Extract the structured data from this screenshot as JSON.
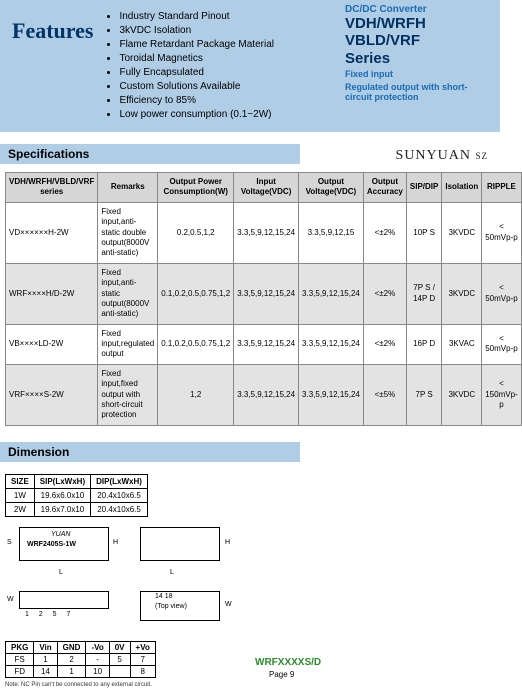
{
  "features": {
    "title": "Features",
    "items": [
      "Industry Standard Pinout",
      "3kVDC Isolation",
      "Flame Retardant Package Material",
      "Toroidal Magnetics",
      "Fully Encapsulated",
      "Custom Solutions Available",
      "Efficiency to 85%",
      "Low power consumption (0.1~2W)"
    ]
  },
  "right_title": {
    "line1": "DC/DC Converter",
    "line2": "VDH/WRFH",
    "line3": "VBLD/VRF",
    "line4": "Series",
    "sub1": "Fixed input",
    "sub2": "Regulated output with short-circuit protection"
  },
  "brand": {
    "name": "SUNYUAN",
    "suffix": "SZ"
  },
  "sections": {
    "spec": "Specifications",
    "dim": "Dimension"
  },
  "spec_table": {
    "headers": [
      "VDH/WRFH/VBLD/VRF series",
      "Remarks",
      "Output Power Consumption(W)",
      "Input Voltage(VDC)",
      "Output Voltage(VDC)",
      "Output Accuracy",
      "SIP/DIP",
      "Isolation",
      "RIPPLE"
    ],
    "rows": [
      {
        "series": "VD××××××H-2W",
        "remark": "Fixed input,anti-static double output(8000V anti-static)",
        "power": "0.2,0.5,1,2",
        "vin": "3.3,5,9,12,15,24",
        "vout": "3.3,5,9,12,15",
        "acc": "<±2%",
        "pkg": "10P S",
        "iso": "3KVDC",
        "rip": "< 50mVp-p"
      },
      {
        "series": "WRF××××H/D-2W",
        "remark": "Fixed input,anti-static output(8000V anti-static)",
        "power": "0.1,0.2,0.5,0.75,1,2",
        "vin": "3.3,5,9,12,15,24",
        "vout": "3.3,5,9,12,15,24",
        "acc": "<±2%",
        "pkg": "7P S / 14P D",
        "iso": "3KVDC",
        "rip": "< 50mVp-p"
      },
      {
        "series": "VB××××LD-2W",
        "remark": "Fixed input,regulated output",
        "power": "0.1,0.2,0.5,0.75,1,2",
        "vin": "3.3,5,9,12,15,24",
        "vout": "3.3,5,9,12,15,24",
        "acc": "<±2%",
        "pkg": "16P D",
        "iso": "3KVAC",
        "rip": "< 50mVp-p"
      },
      {
        "series": "VRF××××S-2W",
        "remark": "Fixed input,fixed output with short-circuit protection",
        "power": "1,2",
        "vin": "3.3,5,9,12,15,24",
        "vout": "3.3,5,9,12,15,24",
        "acc": "<±5%",
        "pkg": "7P S",
        "iso": "3KVDC",
        "rip": "< 150mVp-p"
      }
    ]
  },
  "dim_table": {
    "headers": [
      "SIZE",
      "SIP(LxWxH)",
      "DIP(LxWxH)"
    ],
    "rows": [
      [
        "1W",
        "19.6x6.0x10",
        "20.4x10x6.5"
      ],
      [
        "2W",
        "19.6x7.0x10",
        "20.4x10x6.5"
      ]
    ]
  },
  "pkg_table": {
    "headers": [
      "PKG",
      "Vin",
      "GND",
      "-Vo",
      "0V",
      "+Vo"
    ],
    "rows": [
      [
        "FS",
        "1",
        "2",
        "-",
        "5",
        "7"
      ],
      [
        "FD",
        "14",
        "1",
        "10",
        "",
        "8"
      ]
    ]
  },
  "drawing": {
    "brand": "YUAN",
    "part": "WRF2405S-1W",
    "labels": {
      "H": "H",
      "L": "L",
      "W": "W",
      "top": "14    18",
      "topview": "(Top view)",
      "nums": "1 2      5  7",
      "S": "S"
    }
  },
  "code_label": "WRFXXXXS/D",
  "page": "Page 9",
  "note": "Note: NC Pin can't be connected to any external circuit."
}
